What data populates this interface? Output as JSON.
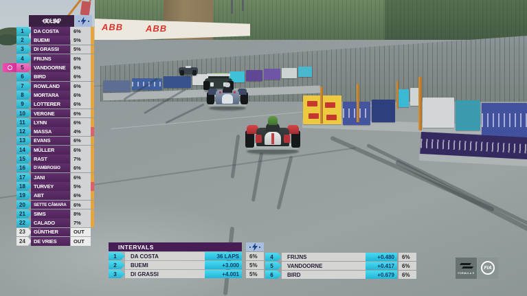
{
  "broadcast": {
    "timer": "00:56",
    "lap_status": "+1 LAP"
  },
  "leaderboard": {
    "rows": [
      {
        "pos": "1",
        "name": "DA COSTA",
        "value": "6%",
        "stripe": "amber",
        "attack": false,
        "out": false
      },
      {
        "pos": "2",
        "name": "BUEMI",
        "value": "5%",
        "stripe": "amber",
        "attack": false,
        "out": false
      },
      {
        "pos": "3",
        "name": "DI GRASSI",
        "value": "5%",
        "stripe": "amber",
        "attack": false,
        "out": false
      },
      {
        "pos": "4",
        "name": "FRIJNS",
        "value": "6%",
        "stripe": "amber",
        "attack": false,
        "out": false
      },
      {
        "pos": "5",
        "name": "VANDOORNE",
        "value": "6%",
        "stripe": "amber",
        "attack": true,
        "out": false
      },
      {
        "pos": "6",
        "name": "BIRD",
        "value": "6%",
        "stripe": "amber",
        "attack": false,
        "out": false
      },
      {
        "pos": "7",
        "name": "ROWLAND",
        "value": "6%",
        "stripe": "amber",
        "attack": false,
        "out": false
      },
      {
        "pos": "8",
        "name": "MORTARA",
        "value": "6%",
        "stripe": "amber",
        "attack": false,
        "out": false
      },
      {
        "pos": "9",
        "name": "LOTTERER",
        "value": "6%",
        "stripe": "amber",
        "attack": false,
        "out": false
      },
      {
        "pos": "10",
        "name": "VERGNE",
        "value": "6%",
        "stripe": "amber",
        "attack": false,
        "out": false
      },
      {
        "pos": "11",
        "name": "LYNN",
        "value": "6%",
        "stripe": "amber",
        "attack": false,
        "out": false
      },
      {
        "pos": "12",
        "name": "MASSA",
        "value": "4%",
        "stripe": "red",
        "attack": false,
        "out": false
      },
      {
        "pos": "13",
        "name": "EVANS",
        "value": "6%",
        "stripe": "amber",
        "attack": false,
        "out": false
      },
      {
        "pos": "14",
        "name": "MÜLLER",
        "value": "6%",
        "stripe": "amber",
        "attack": false,
        "out": false
      },
      {
        "pos": "15",
        "name": "RAST",
        "value": "7%",
        "stripe": "amber",
        "attack": false,
        "out": false
      },
      {
        "pos": "16",
        "name": "D'AMBROSIO",
        "value": "6%",
        "stripe": "amber",
        "attack": false,
        "out": false
      },
      {
        "pos": "17",
        "name": "JANI",
        "value": "6%",
        "stripe": "amber",
        "attack": false,
        "out": false
      },
      {
        "pos": "18",
        "name": "TURVEY",
        "value": "5%",
        "stripe": "red",
        "attack": false,
        "out": false
      },
      {
        "pos": "19",
        "name": "ABT",
        "value": "6%",
        "stripe": "amber",
        "attack": false,
        "out": false
      },
      {
        "pos": "20",
        "name": "SETTE CÂMARA",
        "value": "6%",
        "stripe": "amber",
        "attack": false,
        "out": false
      },
      {
        "pos": "21",
        "name": "SIMS",
        "value": "8%",
        "stripe": "amber",
        "attack": false,
        "out": false
      },
      {
        "pos": "22",
        "name": "CALADO",
        "value": "7%",
        "stripe": "amber",
        "attack": false,
        "out": false
      },
      {
        "pos": "23",
        "name": "GÜNTHER",
        "value": "OUT",
        "stripe": "none",
        "attack": false,
        "out": true
      },
      {
        "pos": "24",
        "name": "DE VRIES",
        "value": "OUT",
        "stripe": "none",
        "attack": false,
        "out": true
      }
    ]
  },
  "intervals": {
    "title": "INTERVALS",
    "left_rows": [
      {
        "pos": "1",
        "name": "DA COSTA",
        "gap": "36 LAPS",
        "value": "6%"
      },
      {
        "pos": "2",
        "name": "BUEMI",
        "gap": "+3.000",
        "value": "5%"
      },
      {
        "pos": "3",
        "name": "DI GRASSI",
        "gap": "+4.001",
        "value": "5%"
      }
    ],
    "right_rows": [
      {
        "pos": "4",
        "name": "FRIJNS",
        "gap": "+0.480",
        "value": "6%"
      },
      {
        "pos": "5",
        "name": "VANDOORNE",
        "gap": "+0.417",
        "value": "6%"
      },
      {
        "pos": "6",
        "name": "BIRD",
        "gap": "+0.679",
        "value": "6%"
      }
    ]
  },
  "scene": {
    "banner_abb": "ABB"
  },
  "logos": {
    "formula_e": "FORMULA E",
    "fia": "FIA"
  },
  "colors": {
    "accent_cyan": "#35cdea",
    "accent_purple": "#552a60",
    "header_purple": "#3a2144",
    "bolt_periwinkle": "#a9bedd",
    "attack_magenta": "#e13ea6",
    "energy_amber": "#e5a43c",
    "energy_red": "#dd5f68"
  }
}
